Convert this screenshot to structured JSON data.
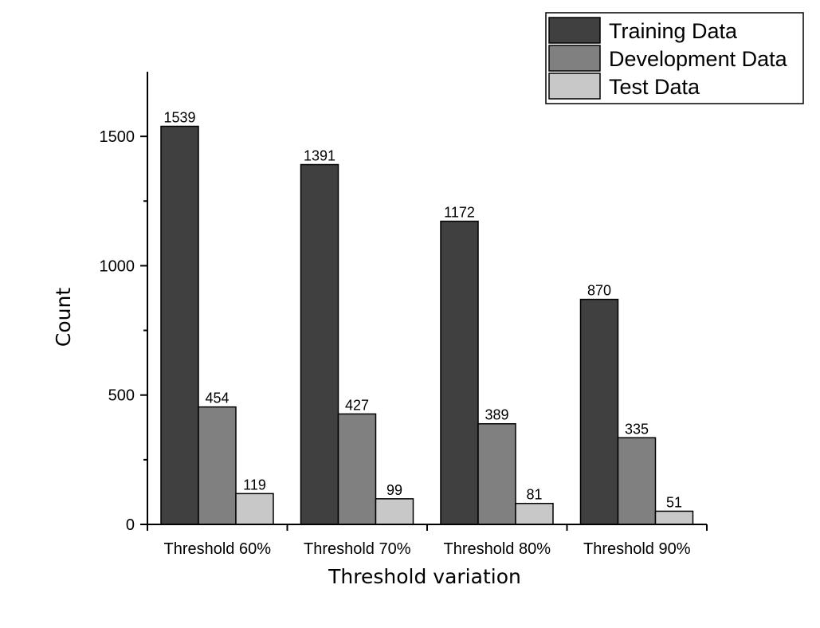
{
  "chart_data": {
    "type": "bar",
    "title": "",
    "xlabel": "Threshold variation",
    "ylabel": "Count",
    "categories": [
      "Threshold 60%",
      "Threshold 70%",
      "Threshold 80%",
      "Threshold 90%"
    ],
    "series": [
      {
        "name": "Training Data",
        "color": "#404040",
        "values": [
          1539,
          1391,
          1172,
          870
        ]
      },
      {
        "name": "Development Data",
        "color": "#808080",
        "values": [
          454,
          427,
          389,
          335
        ]
      },
      {
        "name": "Test Data",
        "color": "#c8c8c8",
        "values": [
          119,
          99,
          81,
          51
        ]
      }
    ],
    "ylim": [
      0,
      1750
    ],
    "yticks": [
      0,
      500,
      1000,
      1500
    ],
    "grid": false,
    "legend_position": "top-right",
    "data_labels": true
  }
}
